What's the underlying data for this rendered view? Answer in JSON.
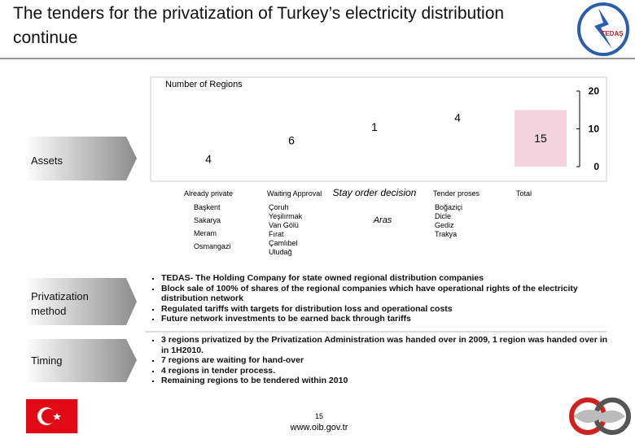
{
  "header": {
    "title": "The tenders for the privatization of Turkey’s electricity distribution continue",
    "logo_text": "TEDAŞ"
  },
  "chart_data": {
    "type": "waterfall",
    "title": "Number of Regions",
    "categories": [
      "Already private",
      "Waiting Approval",
      "Stay order decision",
      "Tender proses",
      "Total"
    ],
    "details": [
      [
        "Başkent",
        "Sakarya",
        "Meram",
        "Osmangazi"
      ],
      [
        "Çoruh",
        "Yeşilırmak",
        "Van Gölü",
        "Fırat",
        "Çamlıbel",
        "Uludağ"
      ],
      [
        "Aras"
      ],
      [
        "Boğaziçi",
        "Dicle",
        "Gediz",
        "Trakya"
      ],
      []
    ],
    "values": [
      4,
      6,
      1,
      4,
      15
    ],
    "color": "#ffffff",
    "total_color": "#f3d3de",
    "ylim": [
      0,
      20
    ],
    "yticks": [
      0,
      10,
      20
    ],
    "grid": false
  },
  "sections": [
    {
      "label": "Assets"
    },
    {
      "label": "Privatization method",
      "bullets": [
        "TEDAS- The Holding Company for state owned regional distribution companies",
        "Block sale of 100% of shares of the regional companies which have operational rights of the electricity distribution network",
        "Regulated tariffs with targets for distribution loss and operational costs",
        "Future network investments to be earned back through tariffs"
      ]
    },
    {
      "label": "Timing",
      "bullets": [
        "3 regions privatized by the Privatization Administration was handed over in 2009, 1 region was handed over in in 1H2010.",
        "7 regions are waiting for hand-over",
        "4 regions in tender process.",
        "Remaining regions to be tendered within 2010"
      ]
    }
  ],
  "footer": {
    "page": "15",
    "url": "www.oib.gov.tr"
  }
}
